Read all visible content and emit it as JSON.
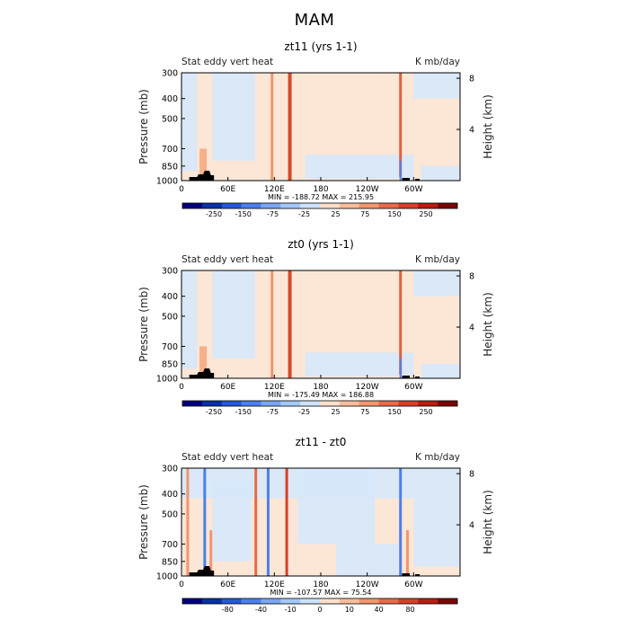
{
  "title": "MAM",
  "chart_data": [
    {
      "type": "heatmap",
      "title": "zt11 (yrs 1-1)",
      "left_label": "Stat eddy vert heat",
      "right_label": "K mb/day",
      "ylabel": "Pressure (mb)",
      "ylabel_right": "Height (km)",
      "xticks": [
        "0",
        "60E",
        "120E",
        "180",
        "120W",
        "60W"
      ],
      "xtick_values": [
        0,
        60,
        120,
        180,
        240,
        300
      ],
      "xlim": [
        0,
        360
      ],
      "yticks": [
        300,
        400,
        500,
        700,
        850,
        1000
      ],
      "ylim": [
        1000,
        300
      ],
      "yscale": "log",
      "height_ticks": [
        4,
        8
      ],
      "stats": "MIN = -188.72   MAX = 215.95",
      "colorbar_labels": [
        "-250",
        "-150",
        "-75",
        "-25",
        "25",
        "75",
        "150",
        "250"
      ],
      "colorbar_colors": [
        "#00007e",
        "#0a2fa6",
        "#2458d8",
        "#4b80ec",
        "#7aa6f3",
        "#a4c8f9",
        "#cde3fb",
        "#fce0cc",
        "#f8bd9c",
        "#f2966f",
        "#e86a48",
        "#d74028",
        "#b81c12",
        "#7a0605"
      ],
      "stripes": [
        {
          "lon": 28,
          "lat_width": 8,
          "color": "#f6b08b",
          "range": [
            700,
            1000
          ]
        },
        {
          "lon": 117,
          "lat_width": 3,
          "color": "#f0956e",
          "range": [
            300,
            1000
          ]
        },
        {
          "lon": 140,
          "lat_width": 4,
          "color": "#d74a2a",
          "range": [
            300,
            1000
          ]
        },
        {
          "lon": 283,
          "lat_width": 3,
          "color": "#e06040",
          "range": [
            300,
            960
          ]
        },
        {
          "lon": 283,
          "lat_width": 2,
          "color": "#4b80ec",
          "range": [
            800,
            1000
          ]
        }
      ]
    },
    {
      "type": "heatmap",
      "title": "zt0 (yrs 1-1)",
      "left_label": "Stat eddy vert heat",
      "right_label": "K mb/day",
      "ylabel": "Pressure (mb)",
      "ylabel_right": "Height (km)",
      "xticks": [
        "0",
        "60E",
        "120E",
        "180",
        "120W",
        "60W"
      ],
      "xtick_values": [
        0,
        60,
        120,
        180,
        240,
        300
      ],
      "xlim": [
        0,
        360
      ],
      "yticks": [
        300,
        400,
        500,
        700,
        850,
        1000
      ],
      "ylim": [
        1000,
        300
      ],
      "yscale": "log",
      "height_ticks": [
        4,
        8
      ],
      "stats": "MIN = -175.49   MAX = 186.88",
      "colorbar_labels": [
        "-250",
        "-150",
        "-75",
        "-25",
        "25",
        "75",
        "150",
        "250"
      ],
      "colorbar_colors": [
        "#00007e",
        "#0a2fa6",
        "#2458d8",
        "#4b80ec",
        "#7aa6f3",
        "#a4c8f9",
        "#cde3fb",
        "#fce0cc",
        "#f8bd9c",
        "#f2966f",
        "#e86a48",
        "#d74028",
        "#b81c12",
        "#7a0605"
      ],
      "stripes": [
        {
          "lon": 28,
          "lat_width": 8,
          "color": "#f6b08b",
          "range": [
            700,
            1000
          ]
        },
        {
          "lon": 117,
          "lat_width": 3,
          "color": "#f0956e",
          "range": [
            300,
            1000
          ]
        },
        {
          "lon": 140,
          "lat_width": 4,
          "color": "#d74a2a",
          "range": [
            300,
            1000
          ]
        },
        {
          "lon": 283,
          "lat_width": 3,
          "color": "#e06040",
          "range": [
            300,
            960
          ]
        },
        {
          "lon": 283,
          "lat_width": 2,
          "color": "#4b80ec",
          "range": [
            800,
            1000
          ]
        }
      ]
    },
    {
      "type": "heatmap",
      "title": "zt11 - zt0",
      "left_label": "Stat eddy vert heat",
      "right_label": "K mb/day",
      "ylabel": "Pressure (mb)",
      "ylabel_right": "Height (km)",
      "xticks": [
        "0",
        "60E",
        "120E",
        "180",
        "120W",
        "60W"
      ],
      "xtick_values": [
        0,
        60,
        120,
        180,
        240,
        300
      ],
      "xlim": [
        0,
        360
      ],
      "yticks": [
        300,
        400,
        500,
        700,
        850,
        1000
      ],
      "ylim": [
        1000,
        300
      ],
      "yscale": "log",
      "height_ticks": [
        4,
        8
      ],
      "stats": "MIN = -107.57   MAX =  75.54",
      "colorbar_labels": [
        "-80",
        "-40",
        "-10",
        "0",
        "10",
        "40",
        "80"
      ],
      "colorbar_colors": [
        "#00007e",
        "#0a2fa6",
        "#2458d8",
        "#4b80ec",
        "#7aa6f3",
        "#a4c8f9",
        "#cde3fb",
        "#fce0cc",
        "#f8bd9c",
        "#f2966f",
        "#e86a48",
        "#d74028",
        "#b81c12",
        "#7a0605"
      ],
      "stripes": [
        {
          "lon": 8,
          "lat_width": 3,
          "color": "#f2966f",
          "range": [
            300,
            1000
          ]
        },
        {
          "lon": 30,
          "lat_width": 3,
          "color": "#4b80ec",
          "range": [
            300,
            1000
          ]
        },
        {
          "lon": 38,
          "lat_width": 3,
          "color": "#f2966f",
          "range": [
            600,
            1000
          ]
        },
        {
          "lon": 96,
          "lat_width": 3,
          "color": "#e86a48",
          "range": [
            300,
            1000
          ]
        },
        {
          "lon": 112,
          "lat_width": 3,
          "color": "#4b80ec",
          "range": [
            300,
            1000
          ]
        },
        {
          "lon": 136,
          "lat_width": 3,
          "color": "#d74028",
          "range": [
            300,
            1000
          ]
        },
        {
          "lon": 283,
          "lat_width": 3,
          "color": "#4b80ec",
          "range": [
            300,
            1000
          ]
        },
        {
          "lon": 292,
          "lat_width": 3,
          "color": "#f2966f",
          "range": [
            600,
            1000
          ]
        }
      ]
    }
  ]
}
